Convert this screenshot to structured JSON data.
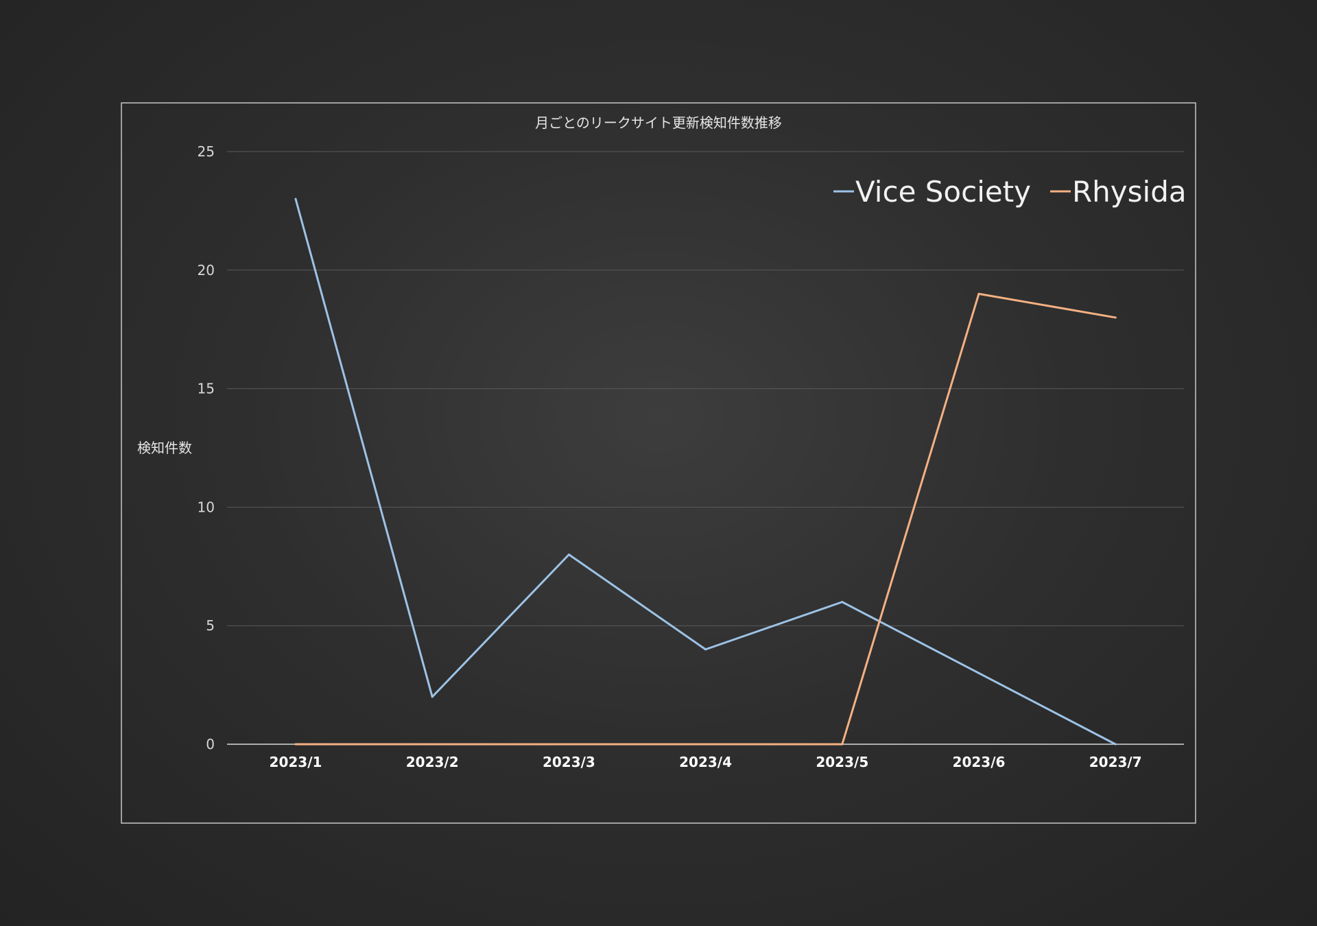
{
  "colors": {
    "background": "#2c2c2c",
    "frame": "#c8c8c8",
    "gridline": "#5a5a5a",
    "vice_society": "#9dc3e6",
    "rhysida": "#f4b183"
  },
  "chart_data": {
    "type": "line",
    "title": "月ごとのリークサイト更新検知件数推移",
    "xlabel": "",
    "ylabel": "検知件数",
    "categories": [
      "2023/1",
      "2023/2",
      "2023/3",
      "2023/4",
      "2023/5",
      "2023/6",
      "2023/7"
    ],
    "series": [
      {
        "name": "Vice Society",
        "color": "#9dc3e6",
        "values": [
          23,
          2,
          8,
          4,
          6,
          3,
          0
        ]
      },
      {
        "name": "Rhysida",
        "color": "#f4b183",
        "values": [
          0,
          0,
          0,
          0,
          0,
          19,
          18
        ]
      }
    ],
    "ylim": [
      0,
      25
    ],
    "yticks": [
      0,
      5,
      10,
      15,
      20,
      25
    ],
    "grid": true,
    "legend_position": "top-right"
  }
}
